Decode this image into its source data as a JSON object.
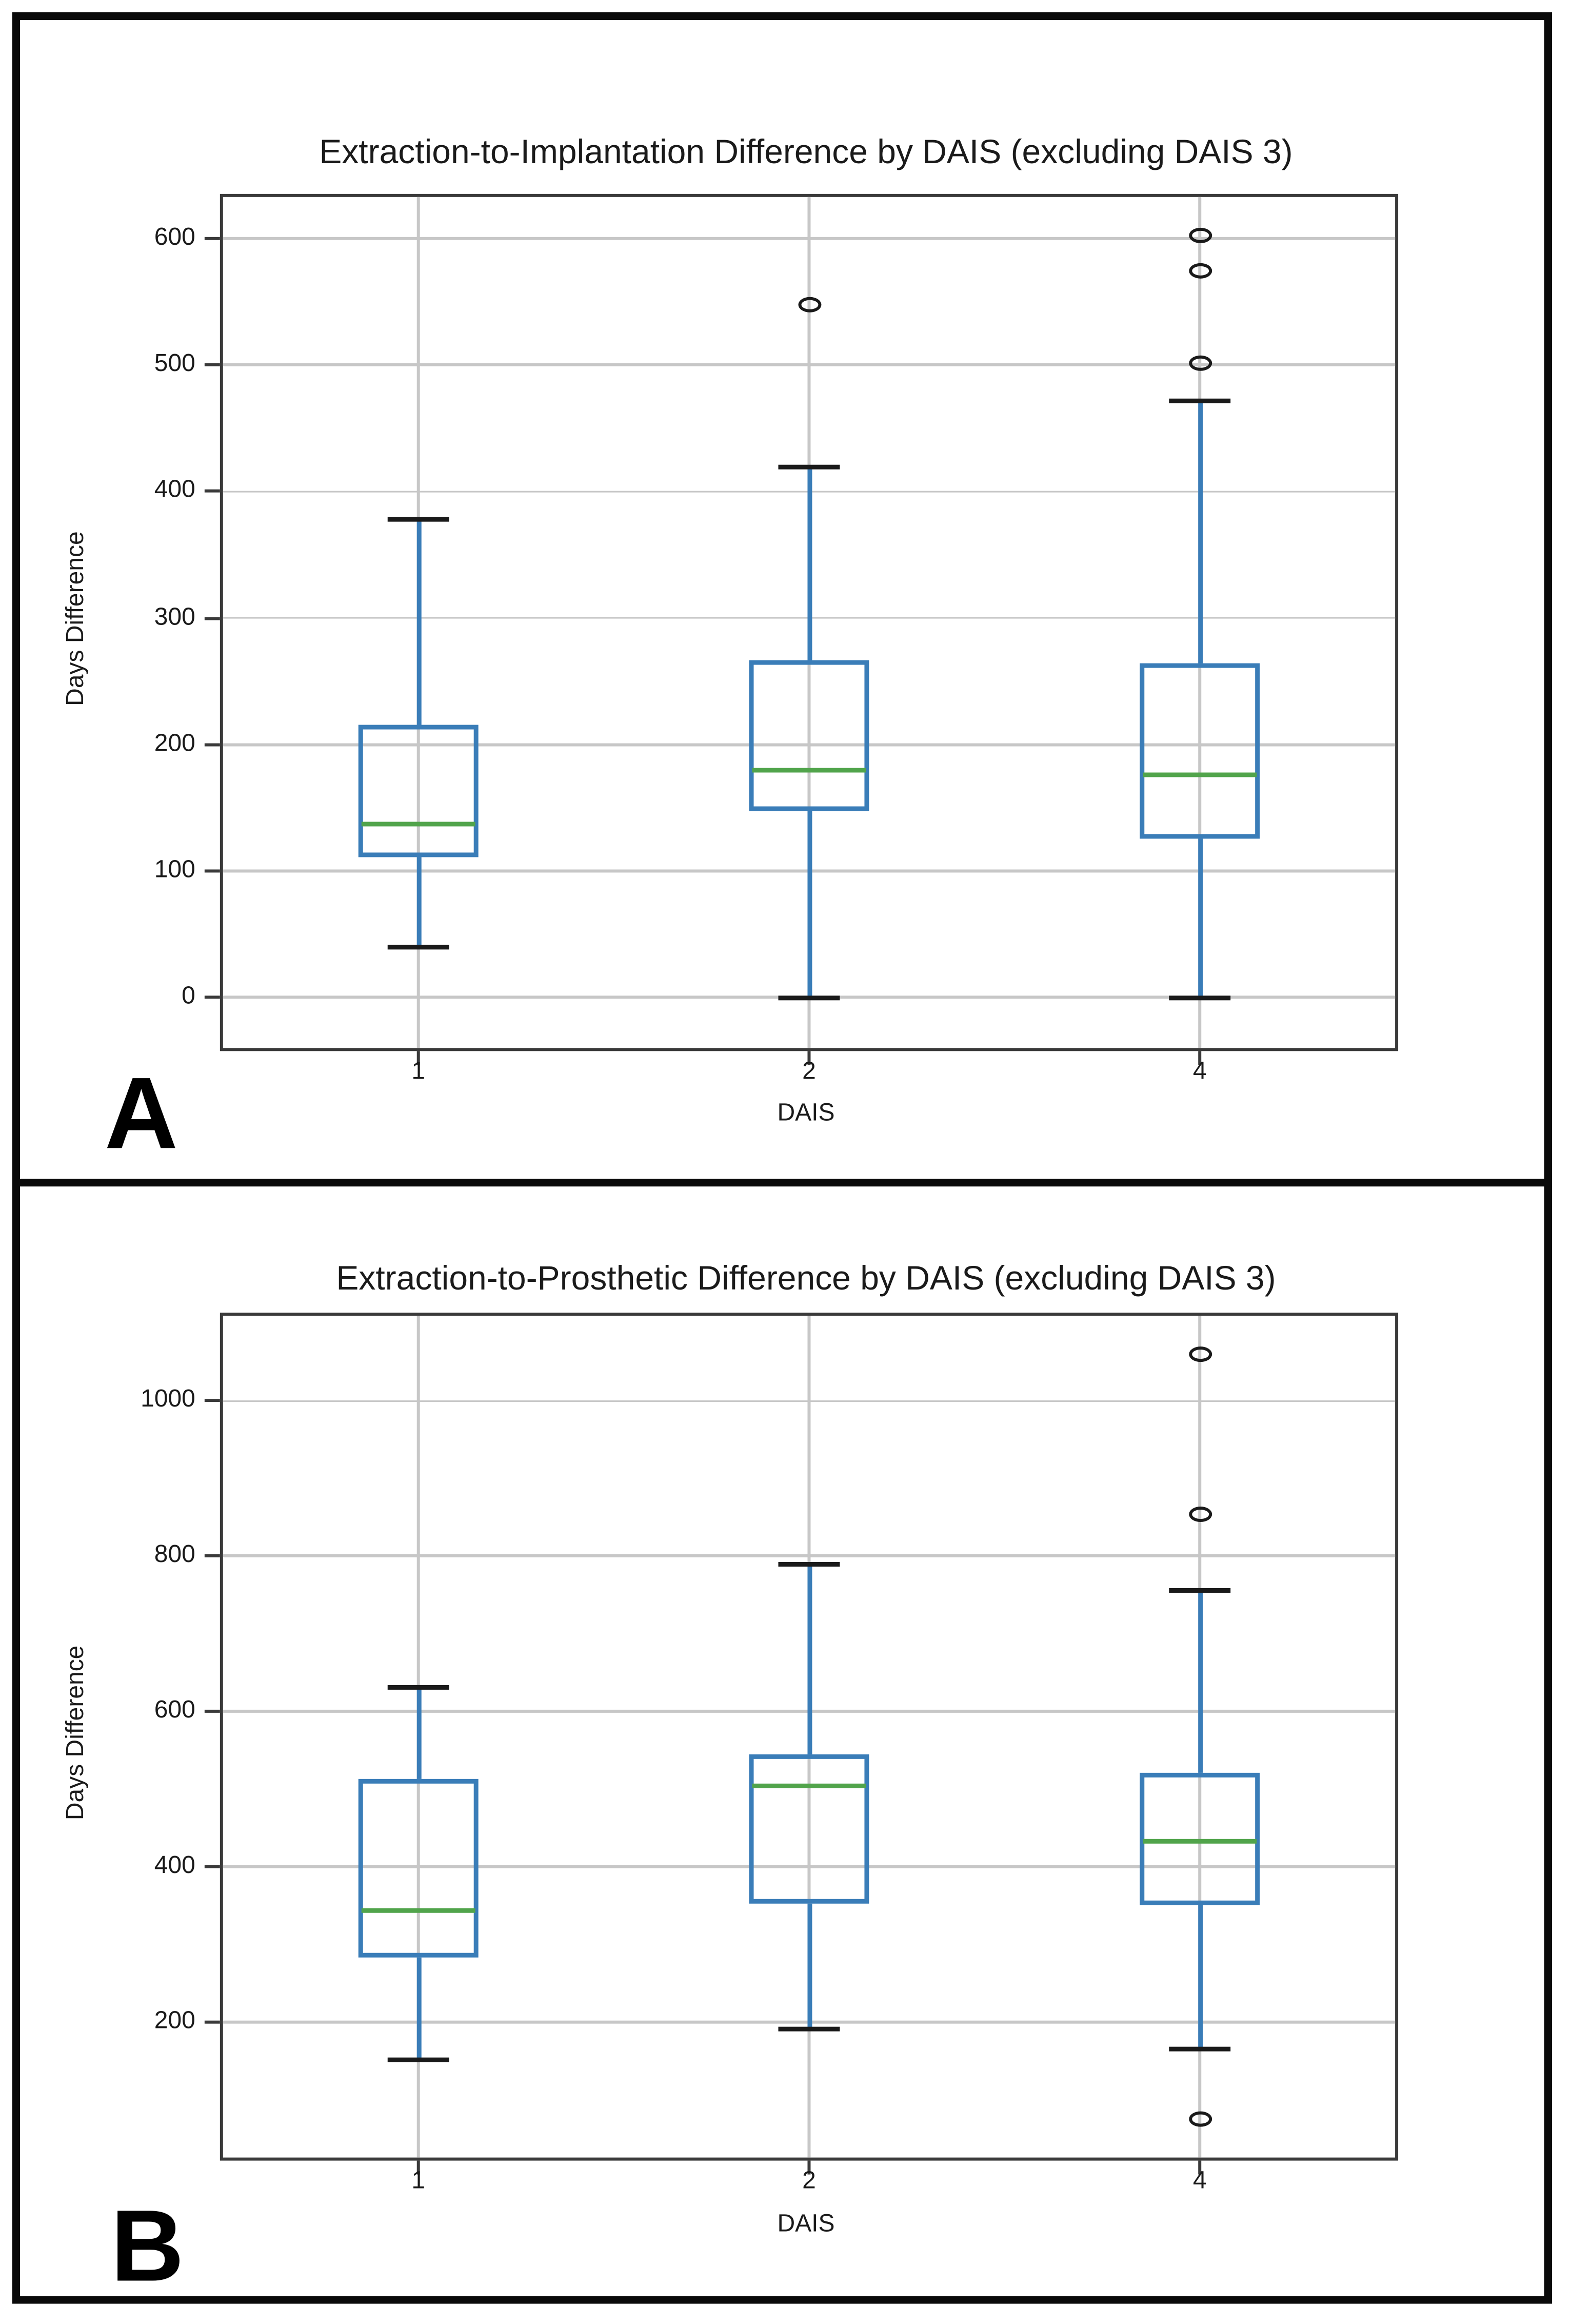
{
  "figure": {
    "description": "Two stacked box-plot panels comparing day differences across DAIS groups"
  },
  "chart_data": [
    {
      "type": "boxplot",
      "panel_letter": "A",
      "title": "Extraction-to-Implantation Difference by DAIS (excluding DAIS 3)",
      "xlabel": "DAIS",
      "ylabel": "Days Difference",
      "categories": [
        "1",
        "2",
        "4"
      ],
      "yticks": [
        0,
        100,
        200,
        300,
        400,
        500,
        600
      ],
      "ylim": [
        -40,
        633
      ],
      "grid": true,
      "legend": "none",
      "boxes": [
        {
          "label": "1",
          "whislo": 40,
          "q1": 111,
          "med": 137,
          "q3": 216,
          "whishi": 378,
          "fliers": []
        },
        {
          "label": "2",
          "whislo": 0,
          "q1": 148,
          "med": 180,
          "q3": 267,
          "whishi": 420,
          "fliers": [
            548
          ]
        },
        {
          "label": "4",
          "whislo": 0,
          "q1": 126,
          "med": 176,
          "q3": 264,
          "whishi": 472,
          "fliers": [
            502,
            574,
            602
          ]
        }
      ],
      "colors": {
        "box": "#3a7db8",
        "median": "#51a44b",
        "whisker": "#1a1a1a",
        "grid": "#c7c7c7",
        "frame": "#3a3a3a"
      }
    },
    {
      "type": "boxplot",
      "panel_letter": "B",
      "title": "Extraction-to-Prosthetic Difference by DAIS (excluding DAIS 3)",
      "xlabel": "DAIS",
      "ylabel": "Days Difference",
      "categories": [
        "1",
        "2",
        "4"
      ],
      "yticks": [
        200,
        400,
        600,
        800,
        1000
      ],
      "ylim": [
        25,
        1110
      ],
      "grid": true,
      "legend": "none",
      "boxes": [
        {
          "label": "1",
          "whislo": 150,
          "q1": 283,
          "med": 343,
          "q3": 513,
          "whishi": 630,
          "fliers": []
        },
        {
          "label": "2",
          "whislo": 190,
          "q1": 353,
          "med": 505,
          "q3": 545,
          "whishi": 790,
          "fliers": []
        },
        {
          "label": "4",
          "whislo": 165,
          "q1": 350,
          "med": 433,
          "q3": 520,
          "whishi": 755,
          "fliers": [
            75,
            855,
            1060
          ]
        }
      ],
      "colors": {
        "box": "#3a7db8",
        "median": "#51a44b",
        "whisker": "#1a1a1a",
        "grid": "#c7c7c7",
        "frame": "#3a3a3a"
      }
    }
  ]
}
